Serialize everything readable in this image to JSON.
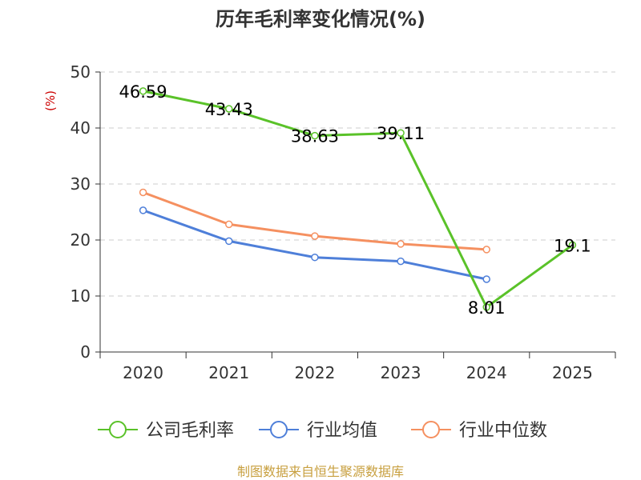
{
  "chart_data": {
    "type": "line",
    "title": "历年毛利率变化情况(%)",
    "ylabel": "(%)",
    "xlabel": "",
    "ylim": [
      0,
      50
    ],
    "yticks": [
      0,
      10,
      20,
      30,
      40,
      50
    ],
    "categories": [
      "2020",
      "2021",
      "2022",
      "2023",
      "2024",
      "2025"
    ],
    "series": [
      {
        "name": "公司毛利率",
        "color": "#5ac229",
        "values": [
          46.59,
          43.43,
          38.63,
          39.11,
          8.01,
          19.1
        ],
        "labels": [
          "46.59",
          "43.43",
          "38.63",
          "39.11",
          "8.01",
          "19.1"
        ]
      },
      {
        "name": "行业均值",
        "color": "#4e7fd9",
        "values": [
          25.3,
          19.8,
          16.9,
          16.2,
          13.0,
          null
        ]
      },
      {
        "name": "行业中位数",
        "color": "#f59060",
        "values": [
          28.5,
          22.8,
          20.7,
          19.3,
          18.3,
          null
        ]
      }
    ],
    "grid": true,
    "legend_position": "bottom"
  },
  "colors": {
    "title": "#333333",
    "ylabel": "#cc0000",
    "axis": "#333333",
    "grid": "#cccccc",
    "source": "#c8a040"
  },
  "source": "制图数据来自恒生聚源数据库"
}
